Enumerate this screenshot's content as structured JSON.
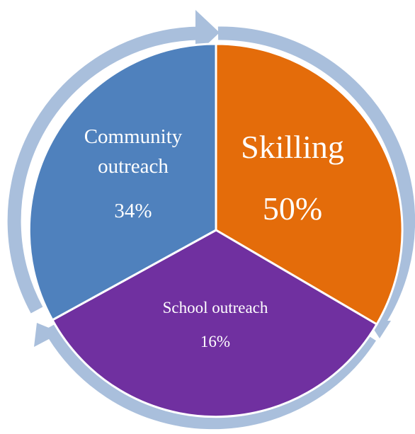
{
  "diagram": {
    "type": "segmented-cycle",
    "ring_color": "#a9bfdc",
    "segments": [
      {
        "id": "skilling",
        "label": "Skilling",
        "value_label": "50%",
        "color": "#e46c0a"
      },
      {
        "id": "school-outreach",
        "label": "School outreach",
        "value_label": "16%",
        "color": "#7030a0"
      },
      {
        "id": "community-outreach",
        "label_lines": [
          "Community",
          "outreach"
        ],
        "value_label": "34%",
        "color": "#4f81bd"
      }
    ]
  }
}
